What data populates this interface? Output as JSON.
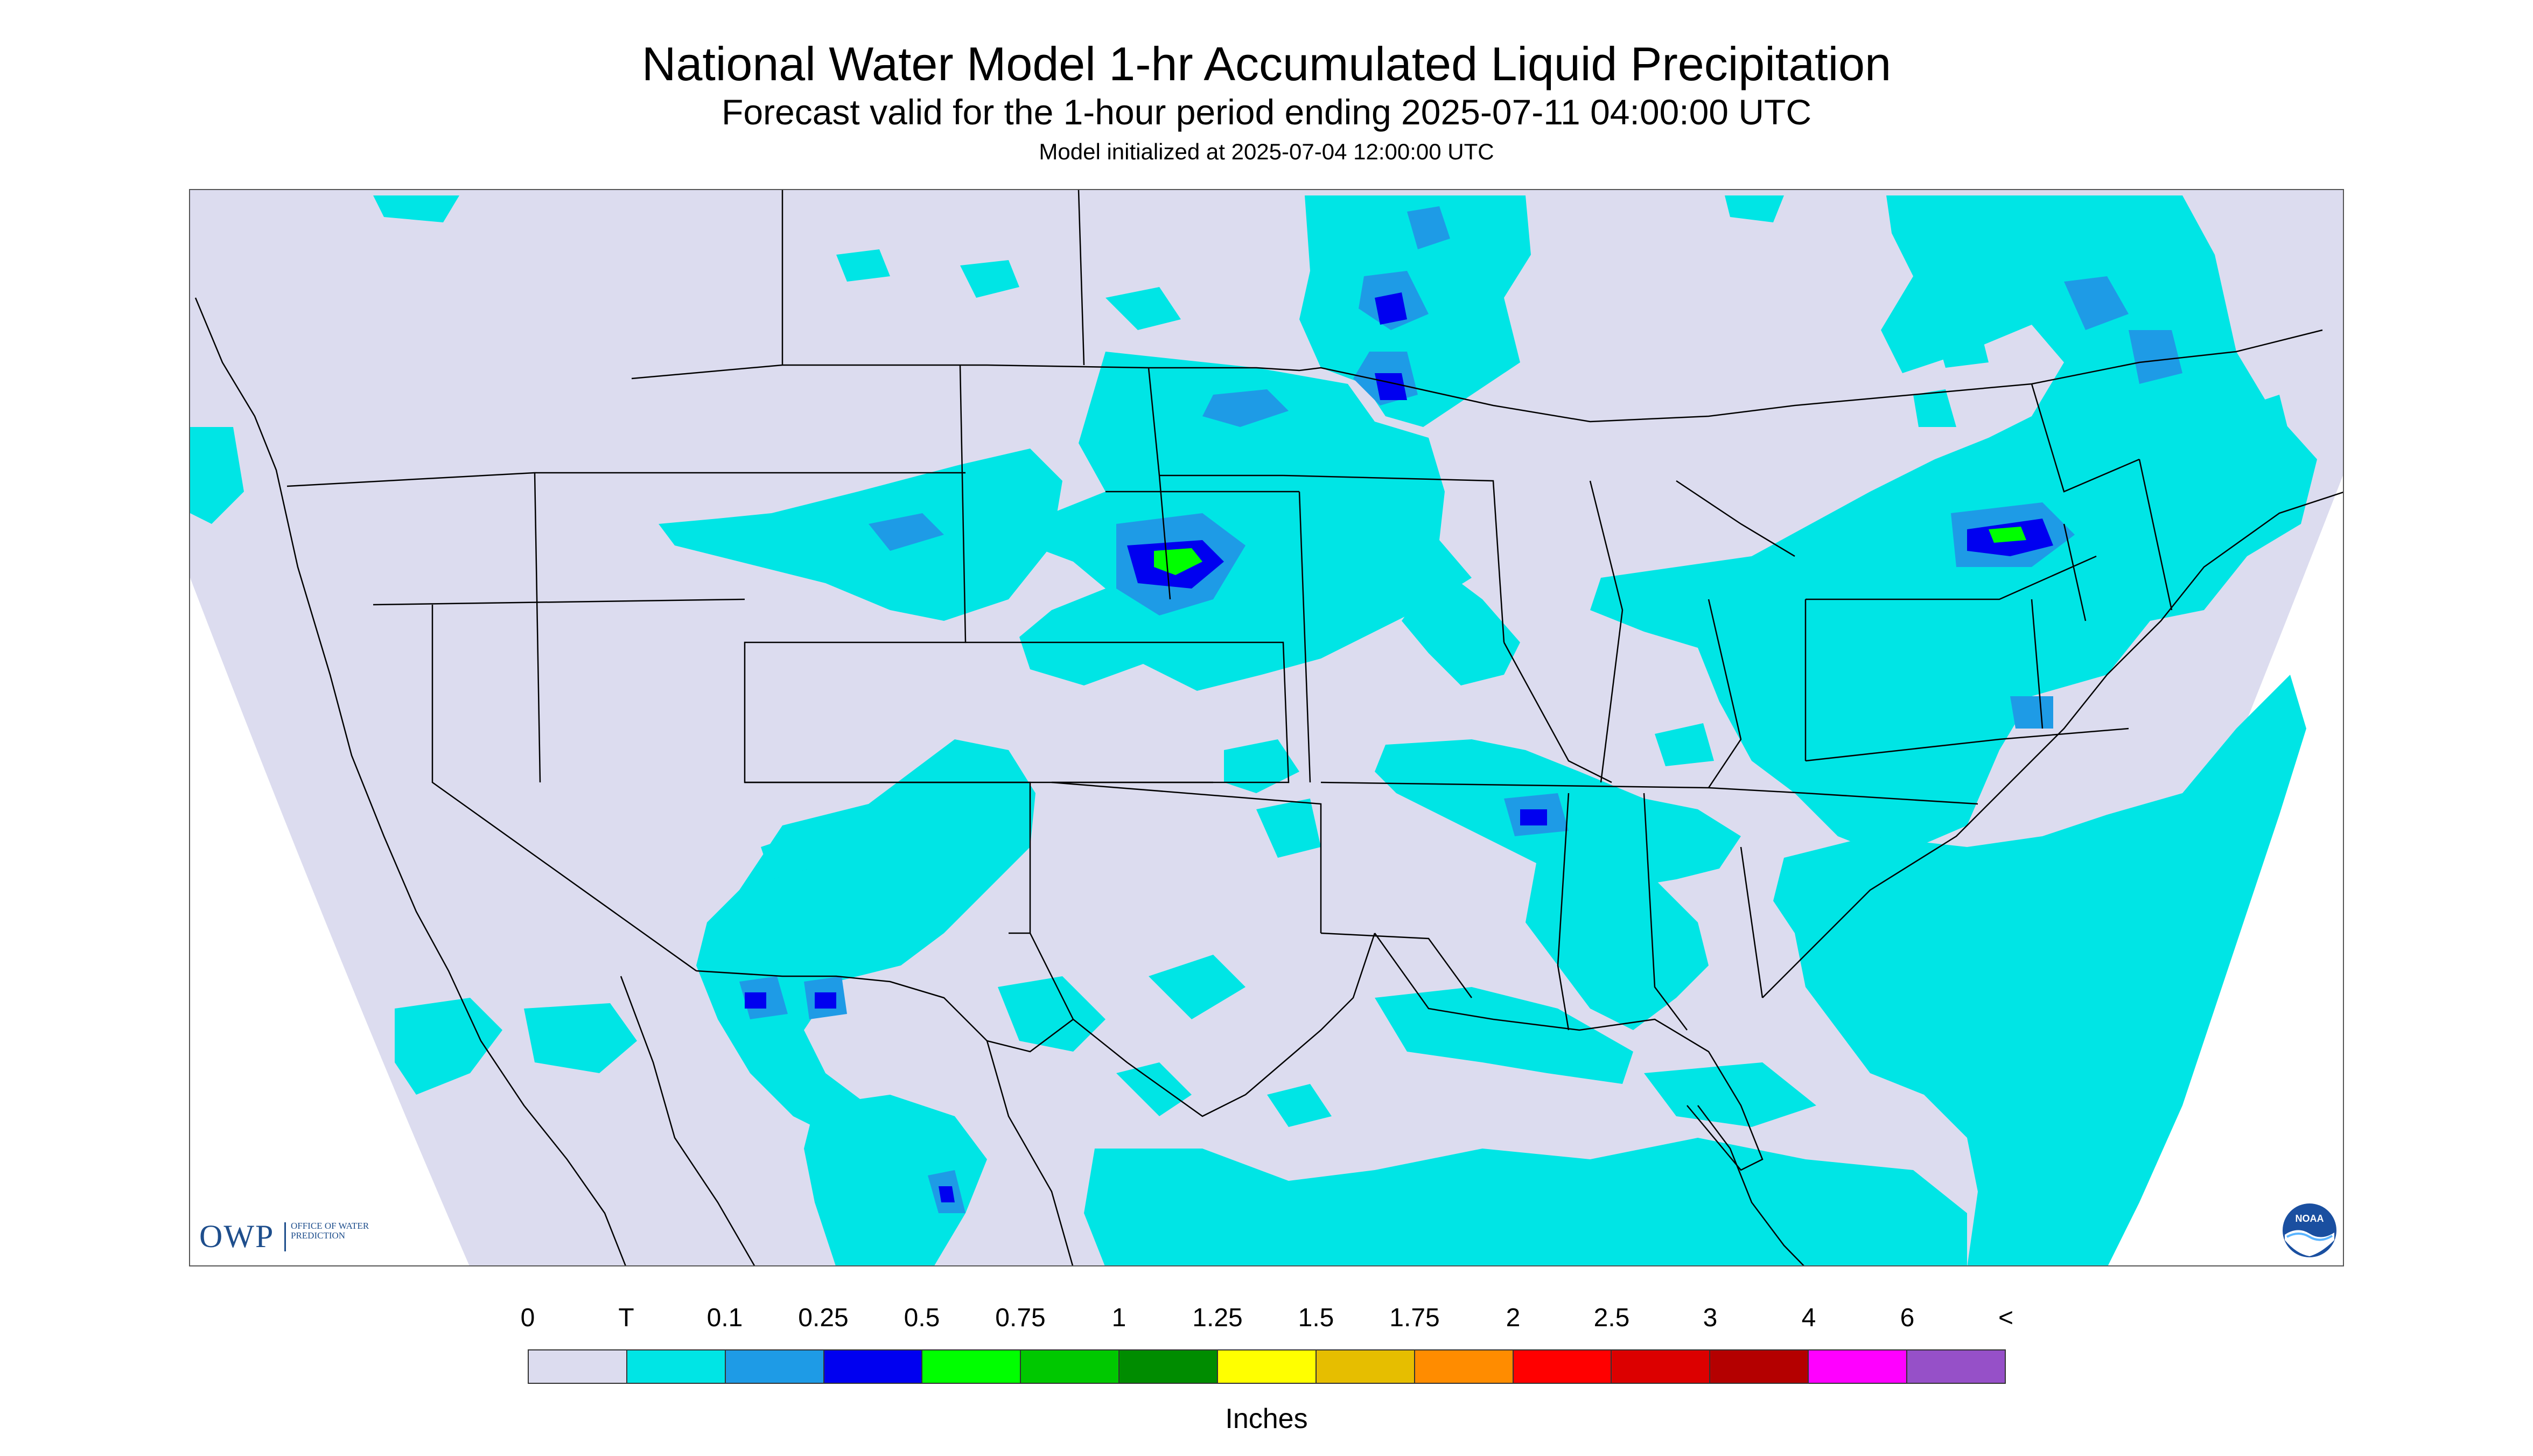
{
  "title": "National Water Model 1-hr Accumulated Liquid Precipitation",
  "subtitle": "Forecast valid for the 1-hour period ending 2025-07-11 04:00:00 UTC",
  "init": "Model initialized at 2025-07-04 12:00:00 UTC",
  "logos": {
    "owp_text": "OWP",
    "owp_sub": "OFFICE OF WATER PREDICTION",
    "noaa_text": "NOAA"
  },
  "legend": {
    "labels": [
      "0",
      "T",
      "0.1",
      "0.25",
      "0.5",
      "0.75",
      "1",
      "1.25",
      "1.5",
      "1.75",
      "2",
      "2.5",
      "3",
      "4",
      "6",
      "<"
    ],
    "colors": [
      "#dcdcef",
      "#00e5e5",
      "#1e9be6",
      "#0000f0",
      "#00ff00",
      "#00c800",
      "#008c00",
      "#ffff00",
      "#e6be00",
      "#ff8c00",
      "#ff0000",
      "#dc0000",
      "#b40000",
      "#ff00ff",
      "#9650c8"
    ],
    "units": "Inches"
  },
  "colors": {
    "no_data_bg": "#dcdcef",
    "trace": "#00e5e5",
    "light": "#1e9be6",
    "moderate": "#0000f0",
    "heavy": "#00ff00",
    "boundary": "#000000"
  }
}
